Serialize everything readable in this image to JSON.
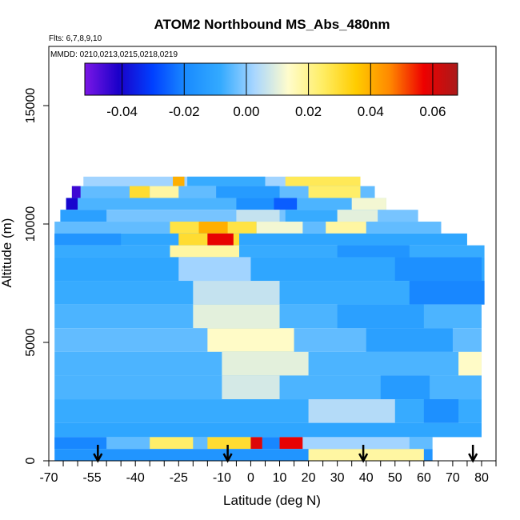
{
  "chart_data": {
    "type": "heatmap",
    "title": "ATOM2 Northbound MS_Abs_480nm",
    "flights_label": "Flts: 6,7,8,9,10",
    "dates_label": "MMDD: 0210,0213,0215,0218,0219",
    "xlabel": "Latitude (deg N)",
    "ylabel": "Altitude (m)",
    "xlim": [
      -70,
      85
    ],
    "ylim": [
      0,
      17500
    ],
    "x_ticks": [
      "-70",
      "-55",
      "-40",
      "-25",
      "-10",
      "0",
      "10",
      "20",
      "30",
      "40",
      "50",
      "60",
      "70",
      "80"
    ],
    "x_ticks_minor": [
      -65,
      -60,
      -50,
      -45,
      -35,
      -30,
      -20,
      -15,
      -5,
      5,
      15,
      25,
      35,
      45,
      55,
      65,
      75,
      85
    ],
    "y_ticks": [
      "0",
      "5000",
      "10000",
      "15000"
    ],
    "colorbar": {
      "range": [
        -0.052,
        0.068
      ],
      "ticks": [
        "-0.04",
        "-0.02",
        "0.00",
        "0.02",
        "0.04",
        "0.06"
      ],
      "colors": [
        "#7b17e6",
        "#1a00c9",
        "#0040ff",
        "#1a8cff",
        "#33aaff",
        "#a8d6ff",
        "#fffccc",
        "#ffee66",
        "#ffcc00",
        "#ff8800",
        "#ee0000",
        "#aa1a1a"
      ]
    },
    "arrows_lat": [
      -53,
      -8,
      39,
      77
    ],
    "cells": [
      {
        "lat": [
          -58,
          38
        ],
        "alt": [
          11600,
          12000
        ],
        "v": 0.002
      },
      {
        "lat": [
          -27,
          -23
        ],
        "alt": [
          11600,
          12000
        ],
        "v": 0.04
      },
      {
        "lat": [
          -22,
          5
        ],
        "alt": [
          11600,
          12000
        ],
        "v": -0.008
      },
      {
        "lat": [
          12,
          38
        ],
        "alt": [
          11600,
          12000
        ],
        "v": 0.026
      },
      {
        "lat": [
          -62,
          43
        ],
        "alt": [
          11100,
          11600
        ],
        "v": -0.004
      },
      {
        "lat": [
          -62,
          -59
        ],
        "alt": [
          11100,
          11600
        ],
        "v": -0.045
      },
      {
        "lat": [
          -42,
          -35
        ],
        "alt": [
          11100,
          11600
        ],
        "v": 0.03
      },
      {
        "lat": [
          -35,
          -25
        ],
        "alt": [
          11100,
          11600
        ],
        "v": 0.018
      },
      {
        "lat": [
          -12,
          10
        ],
        "alt": [
          11100,
          11600
        ],
        "v": -0.014
      },
      {
        "lat": [
          20,
          38
        ],
        "alt": [
          11100,
          11600
        ],
        "v": 0.024
      },
      {
        "lat": [
          -64,
          47
        ],
        "alt": [
          10600,
          11100
        ],
        "v": -0.006
      },
      {
        "lat": [
          -64,
          -60
        ],
        "alt": [
          10600,
          11100
        ],
        "v": -0.04
      },
      {
        "lat": [
          -5,
          8
        ],
        "alt": [
          10600,
          11100
        ],
        "v": -0.018
      },
      {
        "lat": [
          8,
          16
        ],
        "alt": [
          10600,
          11100
        ],
        "v": -0.026
      },
      {
        "lat": [
          35,
          47
        ],
        "alt": [
          10600,
          11100
        ],
        "v": 0.012
      },
      {
        "lat": [
          -66,
          58
        ],
        "alt": [
          10100,
          10600
        ],
        "v": -0.002
      },
      {
        "lat": [
          -66,
          -50
        ],
        "alt": [
          10100,
          10600
        ],
        "v": -0.012
      },
      {
        "lat": [
          -5,
          10
        ],
        "alt": [
          10100,
          10600
        ],
        "v": 0.006
      },
      {
        "lat": [
          12,
          30
        ],
        "alt": [
          10100,
          10600
        ],
        "v": -0.008
      },
      {
        "lat": [
          30,
          44
        ],
        "alt": [
          10100,
          10600
        ],
        "v": 0.01
      },
      {
        "lat": [
          -68,
          66
        ],
        "alt": [
          9600,
          10100
        ],
        "v": -0.004
      },
      {
        "lat": [
          -28,
          2
        ],
        "alt": [
          9600,
          10100
        ],
        "v": 0.028
      },
      {
        "lat": [
          -18,
          -8
        ],
        "alt": [
          9600,
          10100
        ],
        "v": 0.04
      },
      {
        "lat": [
          2,
          18
        ],
        "alt": [
          9600,
          10100
        ],
        "v": 0.012
      },
      {
        "lat": [
          26,
          40
        ],
        "alt": [
          9600,
          10100
        ],
        "v": 0.018
      },
      {
        "lat": [
          -68,
          75
        ],
        "alt": [
          9100,
          9600
        ],
        "v": -0.01
      },
      {
        "lat": [
          -68,
          -45
        ],
        "alt": [
          9100,
          9600
        ],
        "v": -0.016
      },
      {
        "lat": [
          -25,
          -4
        ],
        "alt": [
          9100,
          9600
        ],
        "v": 0.03
      },
      {
        "lat": [
          -15,
          -6
        ],
        "alt": [
          9100,
          9600
        ],
        "v": 0.058
      },
      {
        "lat": [
          -68,
          81
        ],
        "alt": [
          8600,
          9100
        ],
        "v": -0.008
      },
      {
        "lat": [
          -28,
          -4
        ],
        "alt": [
          8600,
          9100
        ],
        "v": 0.018
      },
      {
        "lat": [
          30,
          55
        ],
        "alt": [
          8600,
          9100
        ],
        "v": -0.016
      },
      {
        "lat": [
          -68,
          81
        ],
        "alt": [
          7600,
          8600
        ],
        "v": -0.01
      },
      {
        "lat": [
          -25,
          0
        ],
        "alt": [
          7600,
          8600
        ],
        "v": 0.002
      },
      {
        "lat": [
          50,
          80
        ],
        "alt": [
          7600,
          8600
        ],
        "v": -0.018
      },
      {
        "lat": [
          -68,
          81
        ],
        "alt": [
          6600,
          7600
        ],
        "v": -0.008
      },
      {
        "lat": [
          -20,
          10
        ],
        "alt": [
          6600,
          7600
        ],
        "v": 0.006
      },
      {
        "lat": [
          55,
          81
        ],
        "alt": [
          6600,
          7600
        ],
        "v": -0.02
      },
      {
        "lat": [
          -68,
          80
        ],
        "alt": [
          5600,
          6600
        ],
        "v": -0.006
      },
      {
        "lat": [
          -20,
          10
        ],
        "alt": [
          5600,
          6600
        ],
        "v": 0.01
      },
      {
        "lat": [
          30,
          60
        ],
        "alt": [
          5600,
          6600
        ],
        "v": -0.012
      },
      {
        "lat": [
          -68,
          80
        ],
        "alt": [
          4600,
          5600
        ],
        "v": -0.004
      },
      {
        "lat": [
          -15,
          15
        ],
        "alt": [
          4600,
          5600
        ],
        "v": 0.014
      },
      {
        "lat": [
          40,
          70
        ],
        "alt": [
          4600,
          5600
        ],
        "v": -0.012
      },
      {
        "lat": [
          -68,
          80
        ],
        "alt": [
          3600,
          4600
        ],
        "v": -0.006
      },
      {
        "lat": [
          -10,
          20
        ],
        "alt": [
          3600,
          4600
        ],
        "v": 0.01
      },
      {
        "lat": [
          72,
          80
        ],
        "alt": [
          3600,
          4600
        ],
        "v": 0.014
      },
      {
        "lat": [
          -68,
          80
        ],
        "alt": [
          2600,
          3600
        ],
        "v": -0.006
      },
      {
        "lat": [
          -10,
          10
        ],
        "alt": [
          2600,
          3600
        ],
        "v": 0.008
      },
      {
        "lat": [
          45,
          62
        ],
        "alt": [
          2600,
          3600
        ],
        "v": -0.014
      },
      {
        "lat": [
          -68,
          80
        ],
        "alt": [
          1600,
          2600
        ],
        "v": -0.008
      },
      {
        "lat": [
          20,
          50
        ],
        "alt": [
          1600,
          2600
        ],
        "v": 0.004
      },
      {
        "lat": [
          60,
          72
        ],
        "alt": [
          1600,
          2600
        ],
        "v": -0.018
      },
      {
        "lat": [
          -68,
          80
        ],
        "alt": [
          1000,
          1600
        ],
        "v": -0.01
      },
      {
        "lat": [
          -68,
          63
        ],
        "alt": [
          500,
          1000
        ],
        "v": -0.004
      },
      {
        "lat": [
          -68,
          -50
        ],
        "alt": [
          500,
          1000
        ],
        "v": -0.02
      },
      {
        "lat": [
          -35,
          -20
        ],
        "alt": [
          500,
          1000
        ],
        "v": 0.024
      },
      {
        "lat": [
          -15,
          0
        ],
        "alt": [
          500,
          1000
        ],
        "v": 0.03
      },
      {
        "lat": [
          0,
          4
        ],
        "alt": [
          500,
          1000
        ],
        "v": 0.06
      },
      {
        "lat": [
          4,
          10
        ],
        "alt": [
          500,
          1000
        ],
        "v": -0.02
      },
      {
        "lat": [
          10,
          18
        ],
        "alt": [
          500,
          1000
        ],
        "v": 0.058
      },
      {
        "lat": [
          18,
          55
        ],
        "alt": [
          500,
          1000
        ],
        "v": 0.002
      },
      {
        "lat": [
          -68,
          63
        ],
        "alt": [
          0,
          500
        ],
        "v": -0.016
      },
      {
        "lat": [
          20,
          60
        ],
        "alt": [
          0,
          500
        ],
        "v": 0.018
      }
    ]
  }
}
